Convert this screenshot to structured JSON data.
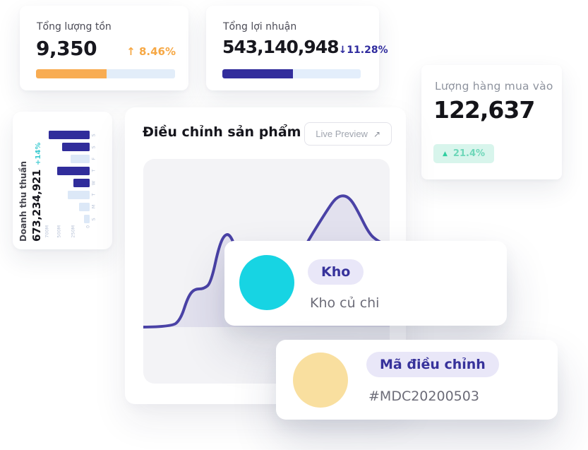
{
  "cards": {
    "inventory": {
      "title": "Tổng lượng tồn",
      "value": "9,350",
      "change": "↑ 8.46%",
      "progress_pct": 51,
      "accent": "#F8AC52"
    },
    "profit": {
      "title": "Tổng lợi nhuận",
      "value": "543,140,948",
      "change": "↓11.28%",
      "progress_pct": 51,
      "accent": "#322D9C"
    },
    "purchase": {
      "title": "Lượng hàng mua vào",
      "value": "122,637",
      "badge_icon": "▲",
      "badge_text": "21.4%",
      "badge_bg": "#D8F5EC",
      "badge_color": "#2FCFA0"
    },
    "adjustment": {
      "title": "Điều chỉnh sản phẩm",
      "live_preview_label": "Live Preview",
      "live_preview_icon": "↗"
    }
  },
  "popovers": {
    "warehouse": {
      "tag": "Kho",
      "name": "Kho củ chi",
      "dot_color": "#17D4E3"
    },
    "adjustment_code": {
      "tag": "Mã điều chỉnh",
      "code": "#MDC20200503",
      "dot_color": "#F9DF9F"
    }
  },
  "chart_data": [
    {
      "type": "bar",
      "title": "Doanh thu thuần",
      "value_label": "673,234,921",
      "change": "+14%",
      "orientation": "card rotated 90° counter-clockwise",
      "categories": [
        "S",
        "M",
        "T",
        "W",
        "T",
        "F",
        "S",
        "S"
      ],
      "values": [
        100,
        180,
        380,
        280,
        560,
        320,
        470,
        700
      ],
      "highlighted": [
        false,
        false,
        false,
        true,
        true,
        false,
        true,
        true
      ],
      "unit": "M",
      "ymax": 700,
      "yticks": [
        {
          "value": 0,
          "label": "0"
        },
        {
          "value": 250,
          "label": "250M"
        },
        {
          "value": 500,
          "label": "500M"
        },
        {
          "value": 700,
          "label": "700M"
        }
      ],
      "bar_color": "#312D9B",
      "bar_muted_color": "#DCE8F7"
    },
    {
      "type": "area",
      "x_range": [
        0,
        349
      ],
      "y_range": [
        0,
        318
      ],
      "baseline_y": 238,
      "points": [
        [
          -6,
          238
        ],
        [
          40,
          238
        ],
        [
          53,
          227
        ],
        [
          63,
          196
        ],
        [
          72,
          184
        ],
        [
          86,
          184
        ],
        [
          96,
          175
        ],
        [
          108,
          120
        ],
        [
          118,
          104
        ],
        [
          127,
          114
        ],
        [
          136,
          148
        ],
        [
          150,
          180
        ],
        [
          168,
          193
        ],
        [
          190,
          191
        ],
        [
          206,
          166
        ],
        [
          232,
          118
        ],
        [
          262,
          70
        ],
        [
          273,
          55
        ],
        [
          284,
          51
        ],
        [
          294,
          57
        ],
        [
          304,
          74
        ],
        [
          320,
          106
        ],
        [
          332,
          116
        ],
        [
          344,
          122
        ],
        [
          356,
          128
        ]
      ],
      "stroke": "#4A42A6",
      "stroke_width": 4,
      "fill": "rgba(77,68,168,0.10)"
    }
  ]
}
